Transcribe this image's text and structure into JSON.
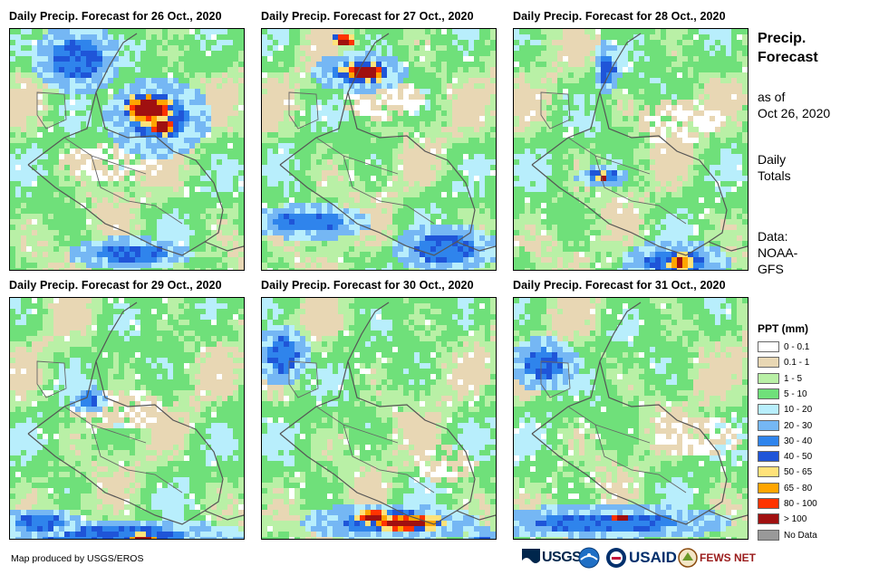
{
  "panels": [
    {
      "title": "Daily Precip. Forecast for 26 Oct., 2020",
      "seed": 11,
      "hot": [
        [
          150,
          85,
          30,
          18
        ],
        [
          165,
          105,
          14,
          10
        ]
      ],
      "blue": [
        [
          160,
          95,
          60,
          45
        ],
        [
          70,
          30,
          50,
          40
        ],
        [
          130,
          245,
          70,
          18
        ]
      ],
      "dry": [
        [
          110,
          145,
          60,
          20
        ]
      ]
    },
    {
      "title": "Daily Precip. Forecast for 27 Oct., 2020",
      "seed": 23,
      "hot": [
        [
          110,
          45,
          28,
          12
        ],
        [
          88,
          10,
          14,
          6
        ]
      ],
      "blue": [
        [
          105,
          45,
          55,
          22
        ],
        [
          50,
          210,
          70,
          20
        ],
        [
          200,
          240,
          60,
          28
        ]
      ],
      "dry": [
        [
          130,
          75,
          45,
          22
        ]
      ]
    },
    {
      "title": "Daily Precip. Forecast for 28 Oct., 2020",
      "seed": 37,
      "hot": [
        [
          180,
          255,
          14,
          10
        ],
        [
          95,
          160,
          6,
          5
        ]
      ],
      "blue": [
        [
          175,
          255,
          60,
          25
        ],
        [
          95,
          160,
          30,
          12
        ],
        [
          100,
          40,
          15,
          30
        ]
      ],
      "dry": [
        [
          180,
          100,
          50,
          25
        ]
      ]
    },
    {
      "title": "Daily Precip. Forecast for 29 Oct., 2020",
      "seed": 49,
      "hot": [
        [
          145,
          265,
          22,
          8
        ],
        [
          205,
          278,
          20,
          8
        ]
      ],
      "blue": [
        [
          110,
          260,
          150,
          20
        ],
        [
          30,
          245,
          50,
          15
        ],
        [
          85,
          110,
          20,
          15
        ]
      ],
      "dry": [
        [
          115,
          120,
          55,
          22
        ]
      ]
    },
    {
      "title": "Daily Precip. Forecast for 30 Oct., 2020",
      "seed": 61,
      "hot": [
        [
          155,
          245,
          45,
          10
        ],
        [
          120,
          238,
          20,
          6
        ]
      ],
      "blue": [
        [
          140,
          245,
          100,
          22
        ],
        [
          20,
          60,
          30,
          35
        ],
        [
          240,
          270,
          20,
          20
        ]
      ],
      "dry": [
        [
          200,
          180,
          35,
          20
        ]
      ]
    },
    {
      "title": "Daily Precip. Forecast for 31 Oct., 2020",
      "seed": 79,
      "hot": [
        [
          115,
          240,
          12,
          6
        ],
        [
          215,
          275,
          25,
          8
        ]
      ],
      "blue": [
        [
          100,
          245,
          140,
          20
        ],
        [
          30,
          70,
          40,
          30
        ]
      ],
      "dry": [
        [
          200,
          150,
          50,
          22
        ]
      ]
    }
  ],
  "sidebar": {
    "title_line1": "Precip.",
    "title_line2": "Forecast",
    "asof_line1": "as of",
    "asof_line2": "Oct 26, 2020",
    "totals_line1": "Daily",
    "totals_line2": "Totals",
    "data_line1": "Data:",
    "data_line2": "NOAA-",
    "data_line3": "GFS"
  },
  "legend": {
    "title": "PPT (mm)",
    "items": [
      {
        "label": "0 - 0.1",
        "color": "#ffffff"
      },
      {
        "label": "0.1 - 1",
        "color": "#e8d7b4"
      },
      {
        "label": "1 - 5",
        "color": "#b9f0a6"
      },
      {
        "label": "5 - 10",
        "color": "#6fe07a"
      },
      {
        "label": "10 - 20",
        "color": "#b8eefc"
      },
      {
        "label": "20 - 30",
        "color": "#75b7f4"
      },
      {
        "label": "30 - 40",
        "color": "#2f84ec"
      },
      {
        "label": "40 - 50",
        "color": "#1f55d8"
      },
      {
        "label": "50 - 65",
        "color": "#ffe27a"
      },
      {
        "label": "65 - 80",
        "color": "#ffa500"
      },
      {
        "label": "80 - 100",
        "color": "#ff3300"
      },
      {
        "label": "> 100",
        "color": "#a01010"
      },
      {
        "label": "No Data",
        "color": "#999999"
      }
    ]
  },
  "footer": {
    "credit": "Map produced by USGS/EROS",
    "logo_usgs": "USGS",
    "logo_usaid": "USAID",
    "logo_fews": "FEWS NET"
  }
}
